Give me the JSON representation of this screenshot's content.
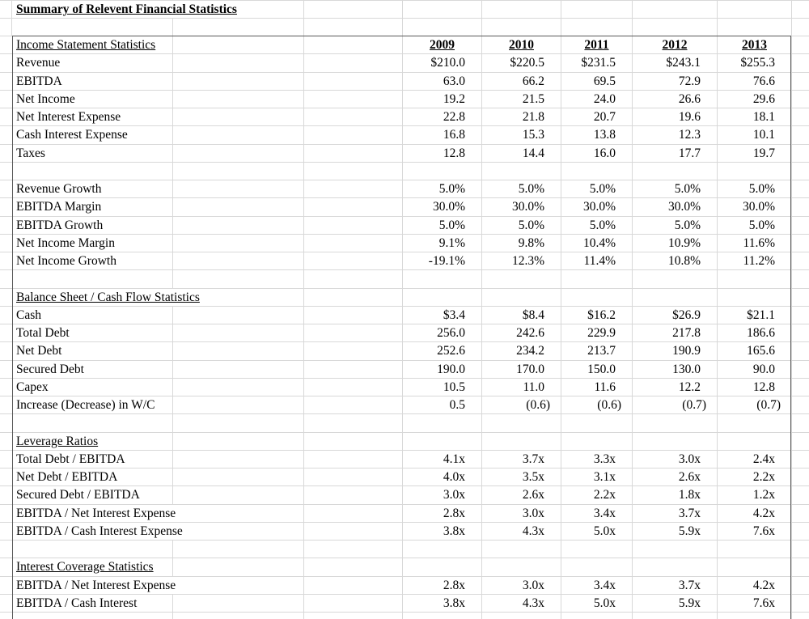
{
  "title": "Summary of Relevent Financial Statistics",
  "colors": {
    "background": "#ffffff",
    "text": "#000000",
    "gridline": "#d8d8d8",
    "table_border": "#595959"
  },
  "table": {
    "rows": [
      {
        "type": "header",
        "label": "Income Statement Statistics",
        "values": [
          "2009",
          "2010",
          "2011",
          "2012",
          "2013"
        ]
      },
      {
        "type": "data",
        "label": "Revenue",
        "values": [
          "$210.0",
          "$220.5",
          "$231.5",
          "$243.1",
          "$255.3"
        ]
      },
      {
        "type": "data",
        "label": "EBITDA",
        "values": [
          "63.0",
          "66.2",
          "69.5",
          "72.9",
          "76.6"
        ]
      },
      {
        "type": "data",
        "label": "Net Income",
        "values": [
          "19.2",
          "21.5",
          "24.0",
          "26.6",
          "29.6"
        ]
      },
      {
        "type": "data",
        "label": "Net Interest Expense",
        "values": [
          "22.8",
          "21.8",
          "20.7",
          "19.6",
          "18.1"
        ]
      },
      {
        "type": "data",
        "label": "Cash Interest Expense",
        "values": [
          "16.8",
          "15.3",
          "13.8",
          "12.3",
          "10.1"
        ]
      },
      {
        "type": "data",
        "label": "Taxes",
        "values": [
          "12.8",
          "14.4",
          "16.0",
          "17.7",
          "19.7"
        ]
      },
      {
        "type": "blank",
        "label": "",
        "values": []
      },
      {
        "type": "data",
        "label": "Revenue Growth",
        "values": [
          "5.0%",
          "5.0%",
          "5.0%",
          "5.0%",
          "5.0%"
        ]
      },
      {
        "type": "data",
        "label": "EBITDA Margin",
        "values": [
          "30.0%",
          "30.0%",
          "30.0%",
          "30.0%",
          "30.0%"
        ]
      },
      {
        "type": "data",
        "label": "EBITDA Growth",
        "values": [
          "5.0%",
          "5.0%",
          "5.0%",
          "5.0%",
          "5.0%"
        ]
      },
      {
        "type": "data",
        "label": "Net Income Margin",
        "values": [
          "9.1%",
          "9.8%",
          "10.4%",
          "10.9%",
          "11.6%"
        ]
      },
      {
        "type": "data",
        "label": "Net Income Growth",
        "values": [
          "-19.1%",
          "12.3%",
          "11.4%",
          "10.8%",
          "11.2%"
        ]
      },
      {
        "type": "blank",
        "label": "",
        "values": []
      },
      {
        "type": "section",
        "label": "Balance Sheet / Cash Flow Statistics",
        "values": []
      },
      {
        "type": "data",
        "label": "Cash",
        "values": [
          "$3.4",
          "$8.4",
          "$16.2",
          "$26.9",
          "$21.1"
        ]
      },
      {
        "type": "data",
        "label": "Total Debt",
        "values": [
          "256.0",
          "242.6",
          "229.9",
          "217.8",
          "186.6"
        ]
      },
      {
        "type": "data",
        "label": "Net Debt",
        "values": [
          "252.6",
          "234.2",
          "213.7",
          "190.9",
          "165.6"
        ]
      },
      {
        "type": "data",
        "label": "Secured Debt",
        "values": [
          "190.0",
          "170.0",
          "150.0",
          "130.0",
          "90.0"
        ]
      },
      {
        "type": "data",
        "label": "Capex",
        "values": [
          "10.5",
          "11.0",
          "11.6",
          "12.2",
          "12.8"
        ]
      },
      {
        "type": "data",
        "label": "Increase (Decrease) in W/C",
        "values": [
          "0.5",
          "(0.6)",
          "(0.6)",
          "(0.7)",
          "(0.7)"
        ]
      },
      {
        "type": "blank",
        "label": "",
        "values": []
      },
      {
        "type": "section",
        "label": "Leverage Ratios",
        "values": []
      },
      {
        "type": "data",
        "label": "Total Debt / EBITDA",
        "values": [
          "4.1x",
          "3.7x",
          "3.3x",
          "3.0x",
          "2.4x"
        ]
      },
      {
        "type": "data",
        "label": "Net Debt / EBITDA",
        "values": [
          "4.0x",
          "3.5x",
          "3.1x",
          "2.6x",
          "2.2x"
        ]
      },
      {
        "type": "data",
        "label": "Secured Debt / EBITDA",
        "values": [
          "3.0x",
          "2.6x",
          "2.2x",
          "1.8x",
          "1.2x"
        ]
      },
      {
        "type": "data",
        "label": "EBITDA / Net Interest Expense",
        "values": [
          "2.8x",
          "3.0x",
          "3.4x",
          "3.7x",
          "4.2x"
        ]
      },
      {
        "type": "data",
        "label": "EBITDA / Cash Interest Expense",
        "values": [
          "3.8x",
          "4.3x",
          "5.0x",
          "5.9x",
          "7.6x"
        ]
      },
      {
        "type": "blank",
        "label": "",
        "values": []
      },
      {
        "type": "section",
        "label": "Interest Coverage Statistics",
        "values": []
      },
      {
        "type": "data",
        "label": "EBITDA / Net Interest Expense",
        "values": [
          "2.8x",
          "3.0x",
          "3.4x",
          "3.7x",
          "4.2x"
        ]
      },
      {
        "type": "data",
        "label": "EBITDA / Cash Interest",
        "values": [
          "3.8x",
          "4.3x",
          "5.0x",
          "5.9x",
          "7.6x"
        ]
      },
      {
        "type": "blank",
        "label": "",
        "values": []
      }
    ]
  }
}
